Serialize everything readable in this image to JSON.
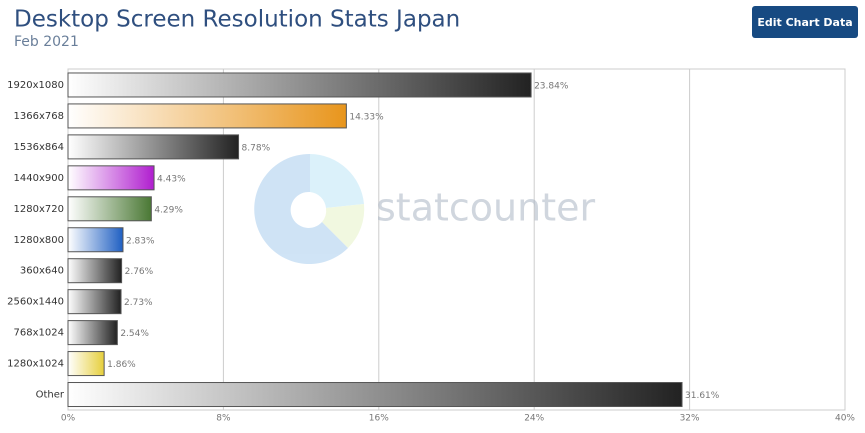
{
  "chart_data": {
    "type": "hbar",
    "title": "Desktop Screen Resolution Stats Japan",
    "subtitle": "Feb 2021",
    "button": "Edit Chart Data",
    "watermark": "statcounter",
    "categories": [
      "1920x1080",
      "1366x768",
      "1536x864",
      "1440x900",
      "1280x720",
      "1280x800",
      "360x640",
      "2560x1440",
      "768x1024",
      "1280x1024",
      "Other"
    ],
    "values": [
      23.84,
      14.33,
      8.78,
      4.43,
      4.29,
      2.83,
      2.76,
      2.73,
      2.54,
      1.86,
      31.61
    ],
    "value_labels": [
      "23.84%",
      "14.33%",
      "8.78%",
      "4.43%",
      "4.29%",
      "2.83%",
      "2.76%",
      "2.73%",
      "2.54%",
      "1.86%",
      "31.61%"
    ],
    "colors": [
      "#222222",
      "#e8951c",
      "#222222",
      "#b01ecf",
      "#4a7834",
      "#1f5fc2",
      "#222222",
      "#222222",
      "#222222",
      "#e6cf3c",
      "#222222"
    ],
    "xlim": [
      0,
      40
    ],
    "xticks": [
      {
        "value": 0,
        "label": "0%"
      },
      {
        "value": 8,
        "label": "8%"
      },
      {
        "value": 16,
        "label": "16%"
      },
      {
        "value": 24,
        "label": "24%"
      },
      {
        "value": 32,
        "label": "32%"
      },
      {
        "value": 40,
        "label": "40%"
      }
    ],
    "grid": true
  }
}
